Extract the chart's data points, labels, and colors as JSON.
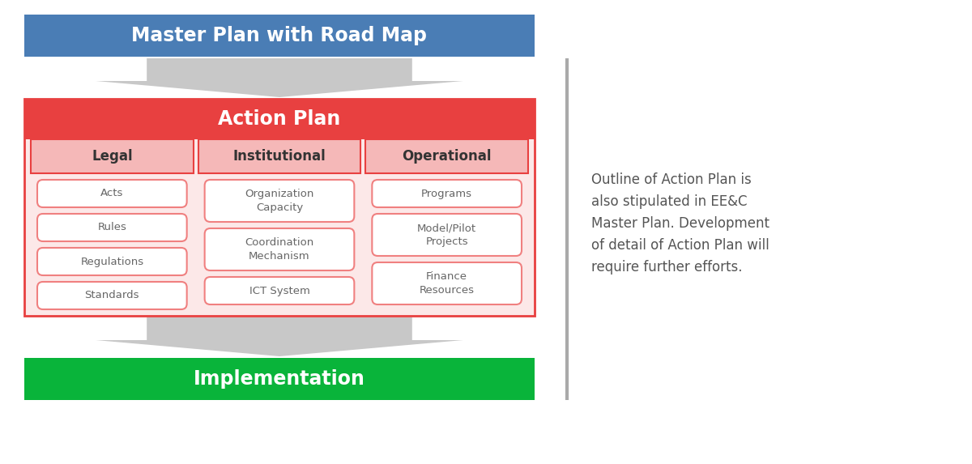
{
  "master_plan_text": "Master Plan with Road Map",
  "master_plan_bg": "#4a7db5",
  "action_plan_text": "Action Plan",
  "action_plan_bg": "#e84040",
  "implementation_text": "Implementation",
  "implementation_bg": "#09b43a",
  "header_text_color": "#ffffff",
  "col_headers": [
    "Legal",
    "Institutional",
    "Operational"
  ],
  "col_header_bg": "#f5b8b8",
  "col_header_border": "#e84040",
  "col_header_text_color": "#333333",
  "action_plan_outer_bg": "#fce8e8",
  "action_plan_outer_border": "#e84040",
  "items": {
    "Legal": [
      "Acts",
      "Rules",
      "Regulations",
      "Standards"
    ],
    "Institutional": [
      "Organization\nCapacity",
      "Coordination\nMechanism",
      "ICT System"
    ],
    "Operational": [
      "Programs",
      "Model/Pilot\nProjects",
      "Finance\nResources"
    ]
  },
  "item_bg": "#ffffff",
  "item_border": "#f08080",
  "item_text_color": "#666666",
  "arrow_color": "#c8c8c8",
  "separator_color": "#aaaaaa",
  "note_text": "Outline of Action Plan is\nalso stipulated in EE&C\nMaster Plan. Development\nof detail of Action Plan will\nrequire further efforts.",
  "note_text_color": "#555555",
  "bg_color": "#ffffff"
}
